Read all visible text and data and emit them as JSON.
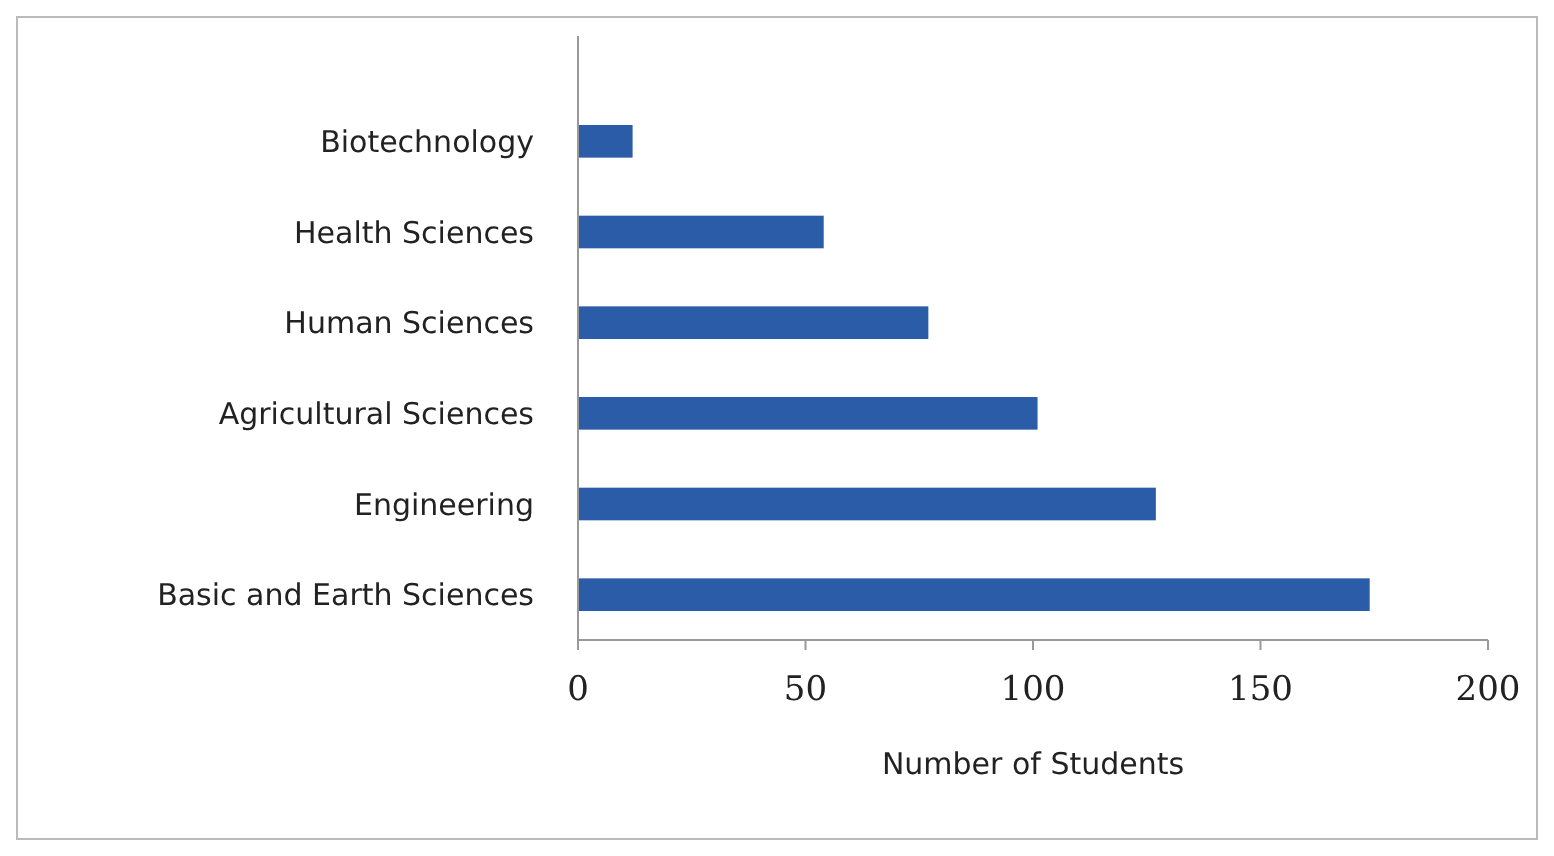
{
  "chart_data": {
    "type": "bar",
    "orientation": "horizontal",
    "xlabel": "Number of Students",
    "categories": [
      "Biotechnology",
      "Health Sciences",
      "Human Sciences",
      "Agricultural Sciences",
      "Engineering",
      "Basic and Earth Sciences"
    ],
    "values": [
      12,
      54,
      77,
      101,
      127,
      174
    ],
    "color": "#2a5ca8",
    "xlim": [
      0,
      200
    ],
    "xticks": [
      0,
      50,
      100,
      150,
      200
    ],
    "grid": false
  }
}
